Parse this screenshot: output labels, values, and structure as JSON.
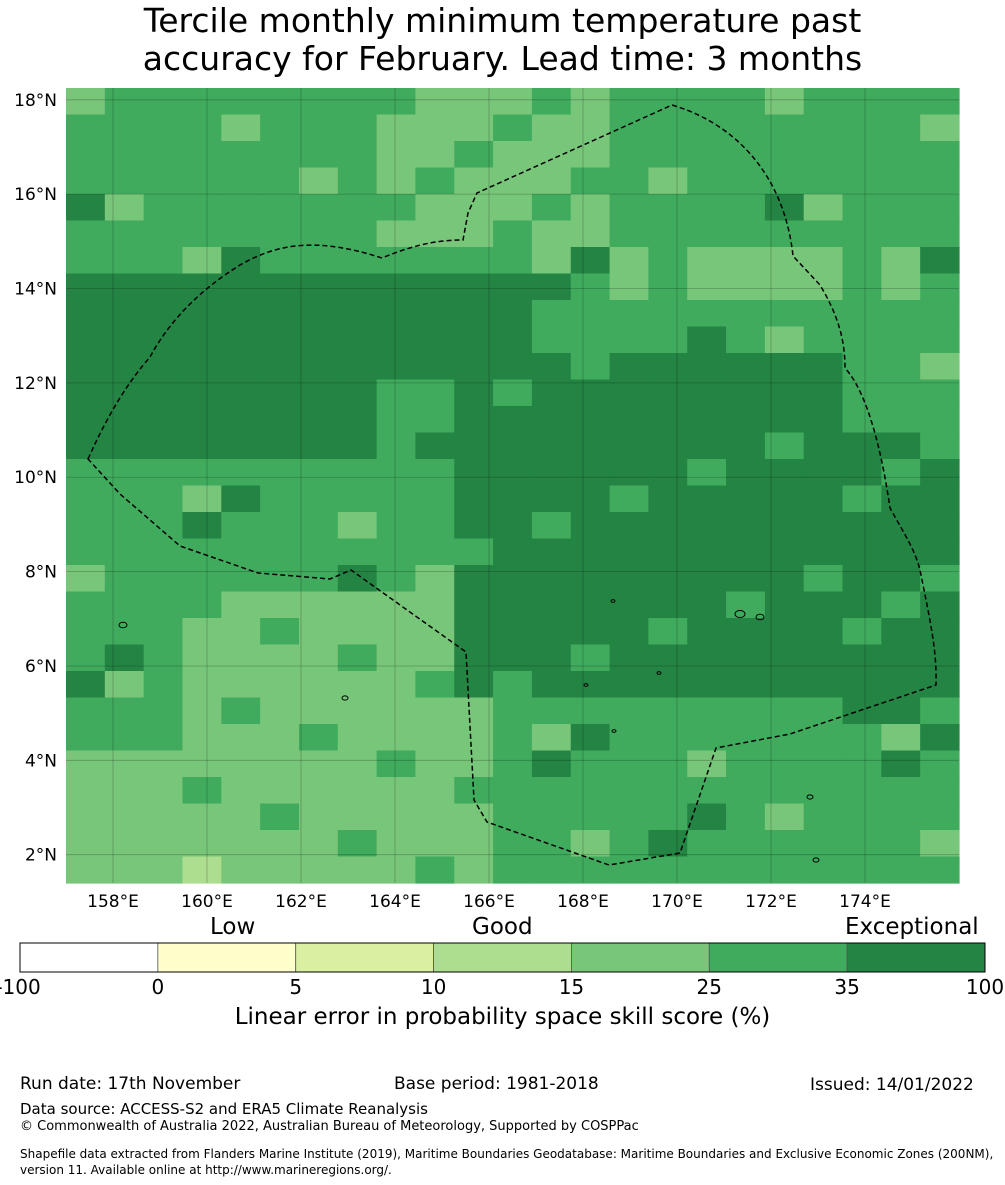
{
  "title": "Tercile monthly minimum temperature past\naccuracy for February. Lead time: 3 months",
  "map": {
    "lat_labels": [
      "18°N",
      "16°N",
      "14°N",
      "12°N",
      "10°N",
      "8°N",
      "6°N",
      "4°N",
      "2°N"
    ],
    "lon_labels": [
      "158°E",
      "160°E",
      "162°E",
      "164°E",
      "166°E",
      "168°E",
      "170°E",
      "172°E",
      "174°E"
    ],
    "lat_values": [
      18,
      16,
      14,
      12,
      10,
      8,
      6,
      4,
      2
    ],
    "lon_values": [
      158,
      160,
      162,
      164,
      166,
      168,
      170,
      172,
      174
    ],
    "extent": {
      "lon_min": 157,
      "lon_max": 176,
      "lat_min": 1.4,
      "lat_max": 18.25
    },
    "boundary": "EEZ dashed outline",
    "skill_cells_legend": {
      "light": "15-25",
      "medium": "25-35",
      "dark": "35-100",
      "pale": "5-10"
    }
  },
  "colorbar": {
    "categories": [
      "Low",
      "Good",
      "Exceptional"
    ],
    "ticks": [
      "-100",
      "0",
      "5",
      "10",
      "15",
      "25",
      "35",
      "100"
    ],
    "colors": [
      "#ffffff",
      "#ffffcc",
      "#d9f0a3",
      "#addd8e",
      "#78c679",
      "#41ab5d",
      "#238443"
    ],
    "title": "Linear error in probability space skill score (%)"
  },
  "footer": {
    "run_date": "Run date: 17th November",
    "base_period": "Base period: 1981-2018",
    "issued": "Issued: 14/01/2022",
    "data_source": "Data source: ACCESS-S2 and ERA5 Climate Reanalysis",
    "copyright": "© Commonwealth of Australia 2022, Australian Bureau of Meteorology, Supported by COSPPac",
    "shapefile_line1": "Shapefile data extracted from Flanders Marine Institute (2019), Maritime Boundaries Geodatabase: Maritime Boundaries and Exclusive Economic Zones (200NM),",
    "shapefile_line2": "version 11. Available online at http://www.marineregions.org/."
  }
}
